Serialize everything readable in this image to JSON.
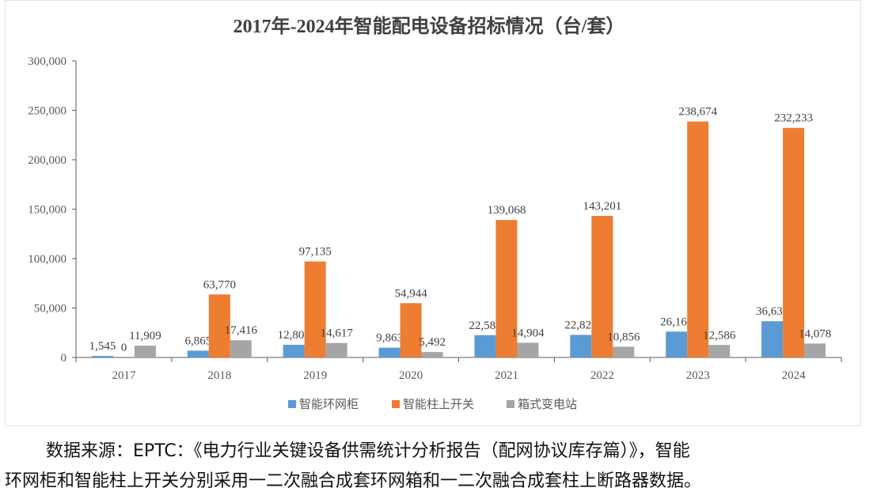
{
  "chart_data": {
    "type": "bar",
    "title": "2017年-2024年智能配电设备招标情况（台/套）",
    "categories": [
      "2017",
      "2018",
      "2019",
      "2020",
      "2021",
      "2022",
      "2023",
      "2024"
    ],
    "series": [
      {
        "name": "智能环网柜",
        "color": "#5b9bd5",
        "values": [
          1545,
          6865,
          12804,
          9863,
          22584,
          22829,
          26161,
          36631
        ],
        "labels": [
          "1,545",
          "6,865",
          "12,804",
          "9,863",
          "22,584",
          "22,829",
          "26,161",
          "36,631"
        ]
      },
      {
        "name": "智能柱上开关",
        "color": "#ed7d31",
        "values": [
          0,
          63770,
          97135,
          54944,
          139068,
          143201,
          238674,
          232233
        ],
        "labels": [
          "0",
          "63,770",
          "97,135",
          "54,944",
          "139,068",
          "143,201",
          "238,674",
          "232,233"
        ]
      },
      {
        "name": "箱式变电站",
        "color": "#a5a5a5",
        "values": [
          11909,
          17416,
          14617,
          5492,
          14904,
          10856,
          12586,
          14078
        ],
        "labels": [
          "11,909",
          "17,416",
          "14,617",
          "5,492",
          "14,904",
          "10,856",
          "12,586",
          "14,078"
        ]
      }
    ],
    "ylim": [
      0,
      300000
    ],
    "yticks": [
      "0",
      "50,000",
      "100,000",
      "150,000",
      "200,000",
      "250,000",
      "300,000"
    ],
    "grid": false,
    "legend": "bottom"
  },
  "footer": {
    "line1": "数据来源：EPTC：《电力行业关键设备供需统计分析报告（配网协议库存篇）》，智能",
    "line2": "环网柜和智能柱上开关分别采用一二次融合成套环网箱和一二次融合成套柱上断路器数据。"
  }
}
